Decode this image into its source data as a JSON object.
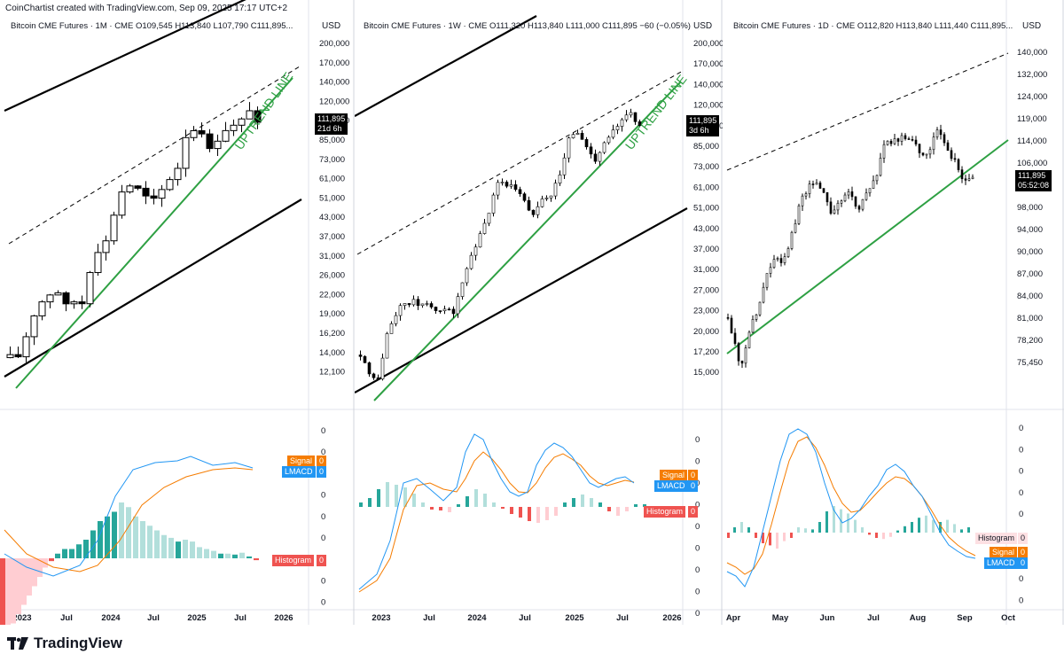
{
  "header": {
    "text": "CoinChartist created with TradingView.com, Sep 09, 2025 17:17 UTC+2"
  },
  "footer": {
    "brand": "TradingView"
  },
  "colors": {
    "green": "#2ea043",
    "black": "#000000",
    "lmacd": "#2196f3",
    "signal": "#f57c00",
    "hist_teal": "#26a69a",
    "hist_teal_light": "#b2dfdb",
    "hist_red": "#ef5350",
    "hist_red_light": "#ffcdd2"
  },
  "chart_data": [
    {
      "type": "candlestick",
      "title": "Bitcoin CME Futures · 1M · CME",
      "ohlc_text": "O109,545 H113,840 L107,790 C111,895...",
      "axis_unit": "USD",
      "y_log": true,
      "y_ticks": [
        "200,000",
        "170,000",
        "140,000",
        "120,000",
        "100,000",
        "85,000",
        "73,000",
        "61,000",
        "51,000",
        "43,000",
        "37,000",
        "31,000",
        "26,000",
        "22,000",
        "19,000",
        "16,200",
        "14,000",
        "12,100"
      ],
      "x_ticks": [
        "2023",
        "Jul",
        "2024",
        "Jul",
        "2025",
        "Jul",
        "2026"
      ],
      "last_price": "111,895",
      "countdown": "21d 6h",
      "annotation": "UPTREND LINE",
      "macd_labels": [
        "Signal",
        "LMACD",
        "Histogram"
      ],
      "macd_values": [
        "0",
        "0",
        "0"
      ],
      "osc_ticks": [
        "0",
        "0",
        "0",
        "0",
        "0",
        "0",
        "0",
        "0",
        "0"
      ]
    },
    {
      "type": "candlestick",
      "title": "Bitcoin CME Futures · 1W · CME",
      "ohlc_text": "O111,320 H113,840 L111,000 C111,895 −60 (−0.05%)",
      "axis_unit": "USD",
      "y_log": true,
      "y_ticks": [
        "200,000",
        "170,000",
        "140,000",
        "120,000",
        "100,000",
        "85,000",
        "73,000",
        "61,000",
        "51,000",
        "43,000",
        "37,000",
        "31,000",
        "27,000",
        "23,000",
        "20,000",
        "17,200",
        "15,000"
      ],
      "x_ticks": [
        "2023",
        "Jul",
        "2024",
        "Jul",
        "2025",
        "Jul",
        "2026"
      ],
      "last_price": "111,895",
      "countdown": "3d 6h",
      "annotation": "UPTREND LINE",
      "macd_labels": [
        "Signal",
        "LMACD",
        "Histogram"
      ],
      "macd_values": [
        "0",
        "0",
        "0"
      ],
      "osc_ticks": [
        "0",
        "0",
        "0",
        "0",
        "0",
        "0",
        "0",
        "0",
        "0"
      ]
    },
    {
      "type": "candlestick",
      "title": "Bitcoin CME Futures · 1D · CME",
      "ohlc_text": "O112,820 H113,840 L111,440 C111,895...",
      "axis_unit": "USD",
      "y_log": true,
      "y_ticks": [
        "140,000",
        "132,000",
        "124,000",
        "119,000",
        "114,000",
        "106,000",
        "102,000",
        "98,000",
        "94,000",
        "90,000",
        "87,000",
        "84,000",
        "81,000",
        "78,200",
        "75,450"
      ],
      "x_ticks": [
        "Apr",
        "May",
        "Jun",
        "Jul",
        "Aug",
        "Sep",
        "Oct"
      ],
      "last_price": "111,895",
      "countdown": "05:52:08",
      "annotation": "",
      "macd_labels": [
        "Histogram",
        "Signal",
        "LMACD"
      ],
      "macd_values": [
        "0",
        "0",
        "0"
      ],
      "osc_ticks": [
        "0",
        "0",
        "0",
        "0",
        "0",
        "0",
        "0",
        "0",
        "0"
      ]
    }
  ]
}
